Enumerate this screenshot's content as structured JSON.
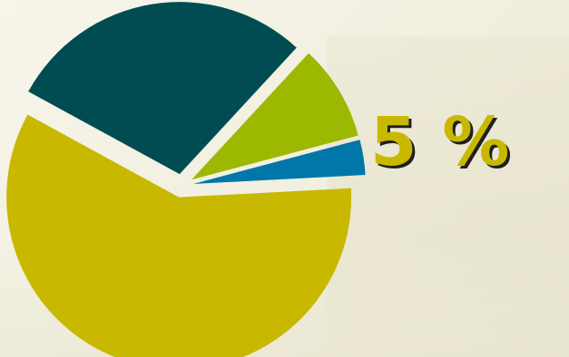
{
  "chart_data": {
    "type": "pie",
    "slices": [
      {
        "value": 58.8,
        "color": "#c9b800"
      },
      {
        "value": 28.9,
        "color": "#004c52"
      },
      {
        "value": 9.0,
        "color": "#9db800"
      },
      {
        "value": 3.3,
        "color": "#0077a8"
      }
    ],
    "annotation": "5 %",
    "annotation_color": "#c9b800"
  }
}
